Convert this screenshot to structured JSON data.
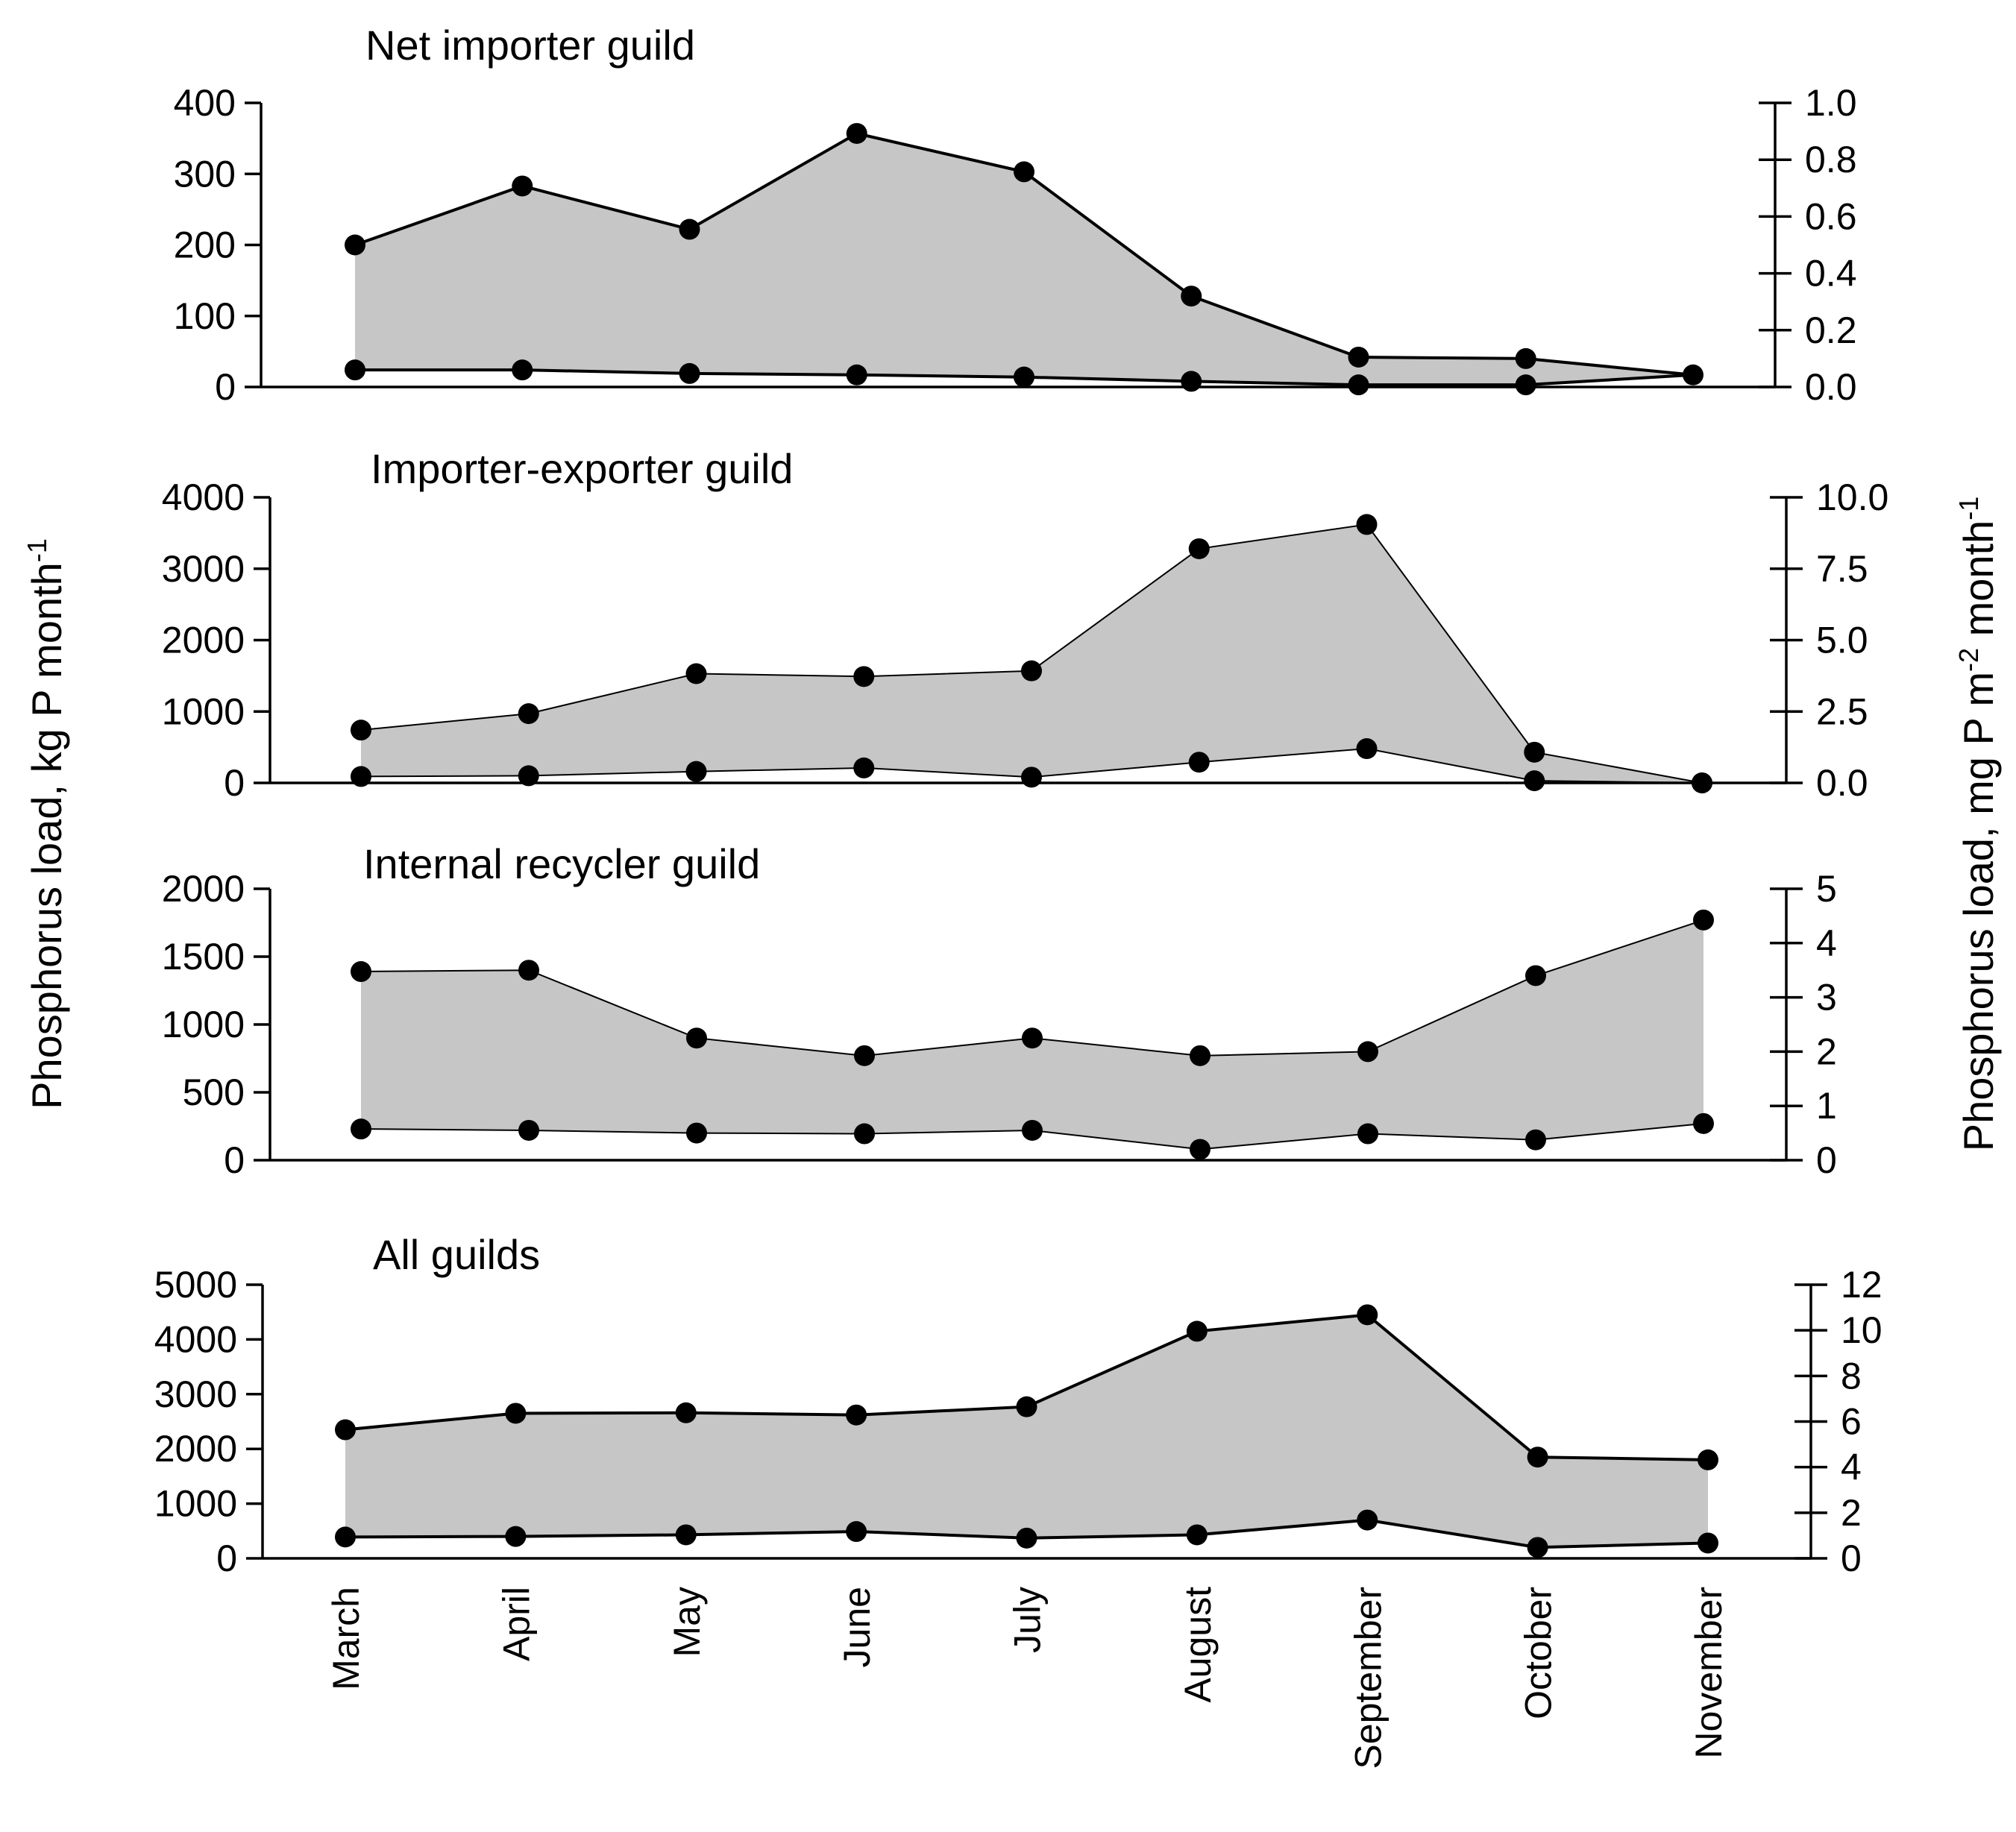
{
  "colors": {
    "area_fill": "#c6c6c6",
    "line": "#000000",
    "marker": "#000000"
  },
  "y_axis_left": {
    "label_main": "Phosphorus load, kg P month",
    "label_sup": "-1"
  },
  "y_axis_right": {
    "label_a": "Phosphorus load, mg P m",
    "label_sup1": "-2",
    "label_b": " month",
    "label_sup2": "-1"
  },
  "chart_data": [
    {
      "type": "area",
      "title": "Net importer guild",
      "categories": [
        "March",
        "April",
        "May",
        "June",
        "July",
        "August",
        "September",
        "October",
        "November"
      ],
      "ylim": [
        0,
        400
      ],
      "y_ticks": [
        "0",
        "100",
        "200",
        "300",
        "400"
      ],
      "y_ticks_values": [
        0,
        100,
        200,
        300,
        400
      ],
      "y2lim": [
        0,
        1.0
      ],
      "y2_ticks": [
        "0.0",
        "0.2",
        "0.4",
        "0.6",
        "0.8",
        "1.0"
      ],
      "y2_ticks_values": [
        0,
        0.2,
        0.4,
        0.6,
        0.8,
        1.0
      ],
      "series": [
        {
          "name": "upper",
          "values": [
            200,
            283,
            222,
            357,
            303,
            128,
            42,
            40,
            null
          ]
        },
        {
          "name": "lower",
          "values": [
            24,
            24,
            19,
            17,
            14,
            8,
            3,
            3,
            17
          ]
        }
      ]
    },
    {
      "type": "area",
      "title": "Importer-exporter guild",
      "categories": [
        "March",
        "April",
        "May",
        "June",
        "July",
        "August",
        "September",
        "October",
        "November"
      ],
      "ylim": [
        0,
        4000
      ],
      "y_ticks": [
        "0",
        "1000",
        "2000",
        "3000",
        "4000"
      ],
      "y_ticks_values": [
        0,
        1000,
        2000,
        3000,
        4000
      ],
      "y2lim": [
        0,
        10.0
      ],
      "y2_ticks": [
        "0.0",
        "2.5",
        "5.0",
        "7.5",
        "10.0"
      ],
      "y2_ticks_values": [
        0,
        2.5,
        5.0,
        7.5,
        10.0
      ],
      "series": [
        {
          "name": "upper",
          "values": [
            740,
            970,
            1530,
            1490,
            1570,
            3280,
            3620,
            430,
            0
          ]
        },
        {
          "name": "lower",
          "values": [
            90,
            100,
            160,
            210,
            80,
            290,
            480,
            30,
            0
          ]
        }
      ]
    },
    {
      "type": "area",
      "title": "Internal recycler guild",
      "categories": [
        "March",
        "April",
        "May",
        "June",
        "July",
        "August",
        "September",
        "October",
        "November"
      ],
      "ylim": [
        0,
        2000
      ],
      "y_ticks": [
        "0",
        "500",
        "1000",
        "1500",
        "2000"
      ],
      "y_ticks_values": [
        0,
        500,
        1000,
        1500,
        2000
      ],
      "y2lim": [
        0,
        5
      ],
      "y2_ticks": [
        "0",
        "1",
        "2",
        "3",
        "4",
        "5"
      ],
      "y2_ticks_values": [
        0,
        1,
        2,
        3,
        4,
        5
      ],
      "series": [
        {
          "name": "upper",
          "values": [
            1390,
            1400,
            900,
            770,
            900,
            770,
            800,
            1360,
            1770
          ]
        },
        {
          "name": "lower",
          "values": [
            230,
            220,
            200,
            195,
            220,
            80,
            195,
            150,
            270
          ]
        }
      ]
    },
    {
      "type": "area",
      "title": "All guilds",
      "categories": [
        "March",
        "April",
        "May",
        "June",
        "July",
        "August",
        "September",
        "October",
        "November"
      ],
      "ylim": [
        0,
        5000
      ],
      "y_ticks": [
        "0",
        "1000",
        "2000",
        "3000",
        "4000",
        "5000"
      ],
      "y_ticks_values": [
        0,
        1000,
        2000,
        3000,
        4000,
        5000
      ],
      "y2lim": [
        0,
        12
      ],
      "y2_ticks": [
        "0",
        "2",
        "4",
        "6",
        "8",
        "10",
        "12"
      ],
      "y2_ticks_values": [
        0,
        2,
        4,
        6,
        8,
        10,
        12
      ],
      "series": [
        {
          "name": "upper",
          "values": [
            2350,
            2650,
            2660,
            2620,
            2770,
            4150,
            4450,
            1850,
            1800
          ]
        },
        {
          "name": "lower",
          "values": [
            390,
            400,
            430,
            490,
            370,
            430,
            700,
            200,
            280
          ]
        }
      ]
    }
  ]
}
